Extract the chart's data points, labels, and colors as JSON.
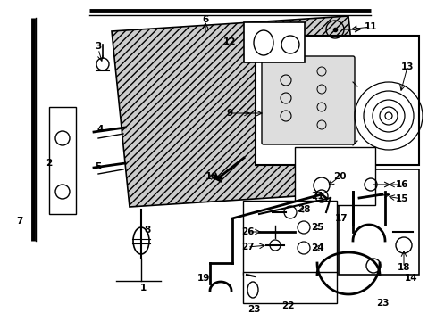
{
  "background_color": "#ffffff",
  "fig_width": 4.89,
  "fig_height": 3.6,
  "dpi": 100,
  "line_color": "#000000",
  "gray_fill": "#c8c8c8",
  "light_gray": "#e8e8e8"
}
